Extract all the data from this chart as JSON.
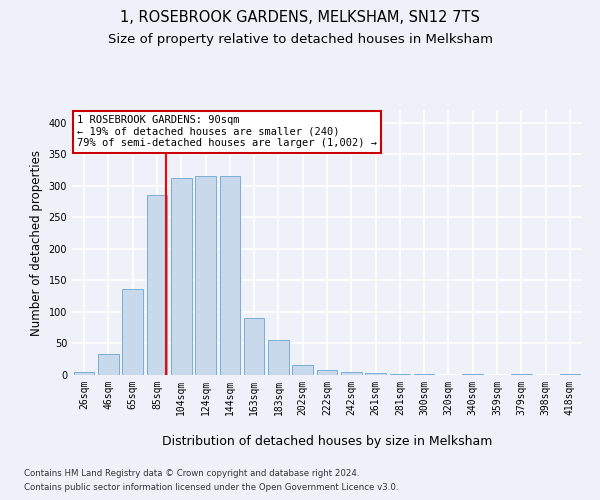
{
  "title": "1, ROSEBROOK GARDENS, MELKSHAM, SN12 7TS",
  "subtitle": "Size of property relative to detached houses in Melksham",
  "xlabel": "Distribution of detached houses by size in Melksham",
  "ylabel": "Number of detached properties",
  "categories": [
    "26sqm",
    "46sqm",
    "65sqm",
    "85sqm",
    "104sqm",
    "124sqm",
    "144sqm",
    "163sqm",
    "183sqm",
    "202sqm",
    "222sqm",
    "242sqm",
    "261sqm",
    "281sqm",
    "300sqm",
    "320sqm",
    "340sqm",
    "359sqm",
    "379sqm",
    "398sqm",
    "418sqm"
  ],
  "values": [
    5,
    33,
    137,
    285,
    313,
    315,
    315,
    91,
    55,
    16,
    8,
    4,
    3,
    1,
    1,
    0,
    1,
    0,
    1,
    0,
    2
  ],
  "bar_color": "#c9d9ec",
  "bar_edge_color": "#7aaed6",
  "red_line_x": 3.35,
  "annotation_title": "1 ROSEBROOK GARDENS: 90sqm",
  "annotation_line1": "← 19% of detached houses are smaller (240)",
  "annotation_line2": "79% of semi-detached houses are larger (1,002) →",
  "annotation_box_color": "#ffffff",
  "annotation_box_edge_color": "#cc0000",
  "ylim": [
    0,
    420
  ],
  "yticks": [
    0,
    50,
    100,
    150,
    200,
    250,
    300,
    350,
    400
  ],
  "footnote1": "Contains HM Land Registry data © Crown copyright and database right 2024.",
  "footnote2": "Contains public sector information licensed under the Open Government Licence v3.0.",
  "background_color": "#eef2f8",
  "plot_bg_color": "#eef2f8",
  "grid_color": "#ffffff",
  "title_fontsize": 10.5,
  "subtitle_fontsize": 9.5,
  "tick_fontsize": 7,
  "ylabel_fontsize": 8.5,
  "xlabel_fontsize": 9
}
